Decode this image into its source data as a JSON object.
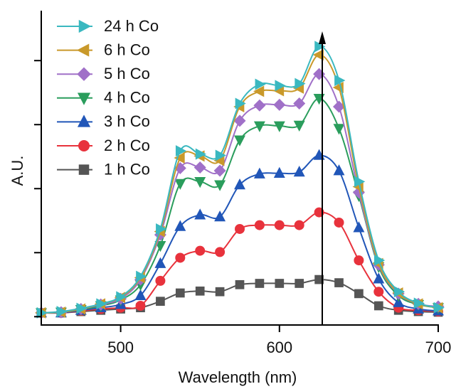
{
  "chart_data": {
    "type": "line",
    "x_label": "Wavelength (nm)",
    "y_label": "A.U.",
    "x": [
      450,
      462.5,
      475,
      487.5,
      500,
      512.5,
      525,
      537.5,
      550,
      562.5,
      575,
      587.5,
      600,
      612.5,
      625,
      637.5,
      650,
      662.5,
      675,
      687.5,
      700
    ],
    "xlim": [
      450,
      700
    ],
    "xticks": [
      500,
      600,
      700
    ],
    "ylim": [
      -0.13,
      4.78
    ],
    "yticks": [
      0,
      1,
      2,
      3,
      4
    ],
    "ytick_labels": false,
    "legend": "upper left",
    "series": [
      {
        "name": "24 h Co",
        "color": "#3ab8c0",
        "marker": "triangle-right",
        "values": [
          0.06,
          0.08,
          0.13,
          0.2,
          0.31,
          0.63,
          1.37,
          2.59,
          2.54,
          2.52,
          3.33,
          3.63,
          3.61,
          3.64,
          4.22,
          3.69,
          2.11,
          0.88,
          0.39,
          0.21,
          0.14
        ]
      },
      {
        "name": "6 h Co",
        "color": "#c9992a",
        "marker": "triangle-left",
        "values": [
          0.06,
          0.07,
          0.12,
          0.2,
          0.3,
          0.61,
          1.33,
          2.48,
          2.51,
          2.44,
          3.28,
          3.52,
          3.53,
          3.57,
          4.09,
          3.58,
          2.03,
          0.83,
          0.37,
          0.2,
          0.14
        ]
      },
      {
        "name": "5 h Co",
        "color": "#a070c8",
        "marker": "diamond",
        "values": [
          0.06,
          0.07,
          0.12,
          0.19,
          0.28,
          0.58,
          1.28,
          2.32,
          2.33,
          2.28,
          3.06,
          3.3,
          3.31,
          3.33,
          3.79,
          3.28,
          1.94,
          0.81,
          0.36,
          0.2,
          0.16
        ]
      },
      {
        "name": "4 h Co",
        "color": "#2a9d5c",
        "marker": "triangle-down",
        "values": [
          0.06,
          0.07,
          0.11,
          0.17,
          0.26,
          0.5,
          1.11,
          2.08,
          2.11,
          2.06,
          2.76,
          2.98,
          2.98,
          2.99,
          3.41,
          2.94,
          1.89,
          0.78,
          0.33,
          0.19,
          0.14
        ]
      },
      {
        "name": "3 h Co",
        "color": "#2156b8",
        "marker": "triangle-up",
        "values": [
          0.06,
          0.06,
          0.1,
          0.14,
          0.19,
          0.33,
          0.83,
          1.41,
          1.59,
          1.56,
          2.06,
          2.23,
          2.24,
          2.26,
          2.52,
          2.28,
          1.39,
          0.59,
          0.22,
          0.12,
          0.09
        ]
      },
      {
        "name": "2 h Co",
        "color": "#e8323c",
        "marker": "circle",
        "values": [
          0.06,
          0.06,
          0.09,
          0.12,
          0.14,
          0.17,
          0.56,
          0.92,
          1.03,
          1.01,
          1.37,
          1.43,
          1.43,
          1.43,
          1.63,
          1.47,
          0.88,
          0.39,
          0.14,
          0.1,
          0.08
        ]
      },
      {
        "name": "1 h Co",
        "color": "#555555",
        "marker": "square",
        "values": [
          0.06,
          0.06,
          0.08,
          0.1,
          0.12,
          0.14,
          0.24,
          0.37,
          0.4,
          0.39,
          0.5,
          0.52,
          0.52,
          0.52,
          0.58,
          0.53,
          0.36,
          0.17,
          0.1,
          0.08,
          0.07
        ]
      }
    ]
  }
}
